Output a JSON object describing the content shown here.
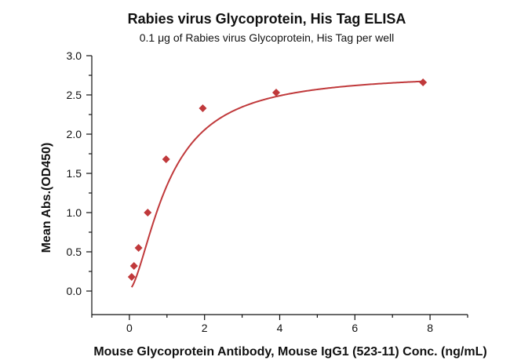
{
  "chart_data": {
    "type": "scatter",
    "title": "Rabies virus Glycoprotein, His Tag ELISA",
    "subtitle": "0.1 μg of Rabies virus Glycoprotein, His Tag per well",
    "xlabel": "Mouse Glycoprotein Antibody, Mouse IgG1 (523-11) Conc. (ng/mL)",
    "ylabel": "Mean Abs.(OD450)",
    "xlim": [
      -1,
      9
    ],
    "ylim": [
      -0.3,
      3.0
    ],
    "xticks": [
      0,
      2,
      4,
      6,
      8
    ],
    "yticks": [
      0.0,
      0.5,
      1.0,
      1.5,
      2.0,
      2.5,
      3.0
    ],
    "xtick_labels": [
      "0",
      "2",
      "4",
      "6",
      "8"
    ],
    "ytick_labels": [
      "0.0",
      "0.5",
      "1.0",
      "1.5",
      "2.0",
      "2.5",
      "3.0"
    ],
    "series": [
      {
        "x": [
          0.061,
          0.122,
          0.244,
          0.488,
          0.977,
          1.953,
          3.906,
          7.813
        ],
        "y": [
          0.18,
          0.32,
          0.55,
          1.0,
          1.68,
          2.33,
          2.53,
          2.66
        ],
        "color": "#c0393b",
        "marker": "diamond",
        "fit": "4PL"
      }
    ],
    "grid": false,
    "legend": "none"
  }
}
